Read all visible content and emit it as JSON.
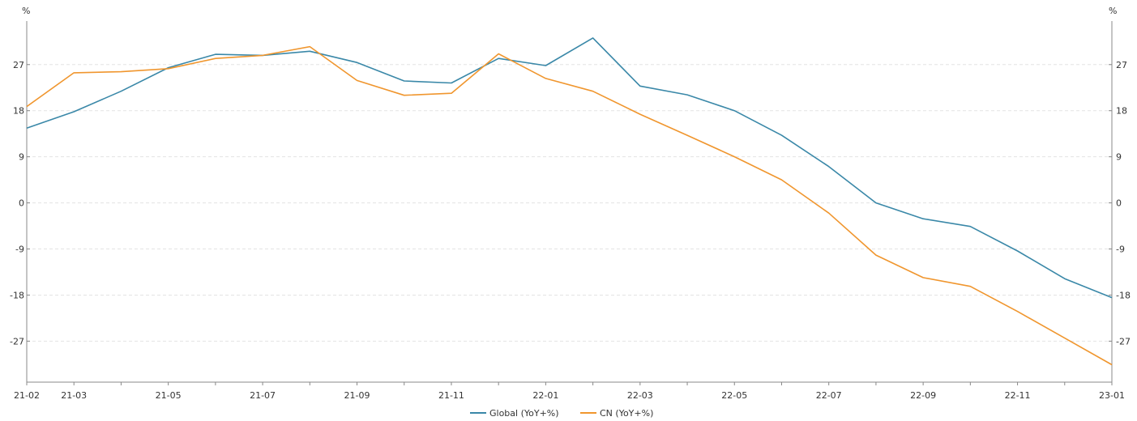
{
  "chart_data": {
    "type": "line",
    "x": [
      "21-02",
      "21-03",
      "21-04",
      "21-05",
      "21-06",
      "21-07",
      "21-08",
      "21-09",
      "21-10",
      "21-11",
      "21-12",
      "22-01",
      "22-02",
      "22-03",
      "22-04",
      "22-05",
      "22-06",
      "22-07",
      "22-08",
      "22-09",
      "22-10",
      "22-11",
      "22-12",
      "23-01"
    ],
    "x_tick_labels": [
      "21-02",
      "21-03",
      "21-05",
      "21-07",
      "21-09",
      "21-11",
      "22-01",
      "22-03",
      "22-05",
      "22-07",
      "22-09",
      "22-11",
      "23-01"
    ],
    "y_ticks": [
      27,
      18,
      9,
      0,
      -9,
      -18,
      -27
    ],
    "ylim": [
      -35,
      35.5
    ],
    "y_unit_left": "%",
    "y_unit_right": "%",
    "grid": true,
    "legend_position": "bottom-center",
    "series": [
      {
        "name": "Global (YoY+%)",
        "color": "#3a88a8",
        "values": [
          14.6,
          17.8,
          21.8,
          26.4,
          29.0,
          28.8,
          29.6,
          27.4,
          23.8,
          23.4,
          28.2,
          26.8,
          32.2,
          22.8,
          21.1,
          18.0,
          13.2,
          7.1,
          0.0,
          -3.1,
          -4.6,
          -9.4,
          -14.8,
          -18.5
        ]
      },
      {
        "name": "CN (YoY+%)",
        "color": "#f0962e",
        "values": [
          18.8,
          25.4,
          25.6,
          26.2,
          28.2,
          28.8,
          30.5,
          23.9,
          21.0,
          21.4,
          29.1,
          24.3,
          21.8,
          17.3,
          13.2,
          9.0,
          4.5,
          -2.0,
          -10.2,
          -14.6,
          -16.3,
          -21.2,
          -26.4,
          -31.6
        ]
      }
    ]
  }
}
